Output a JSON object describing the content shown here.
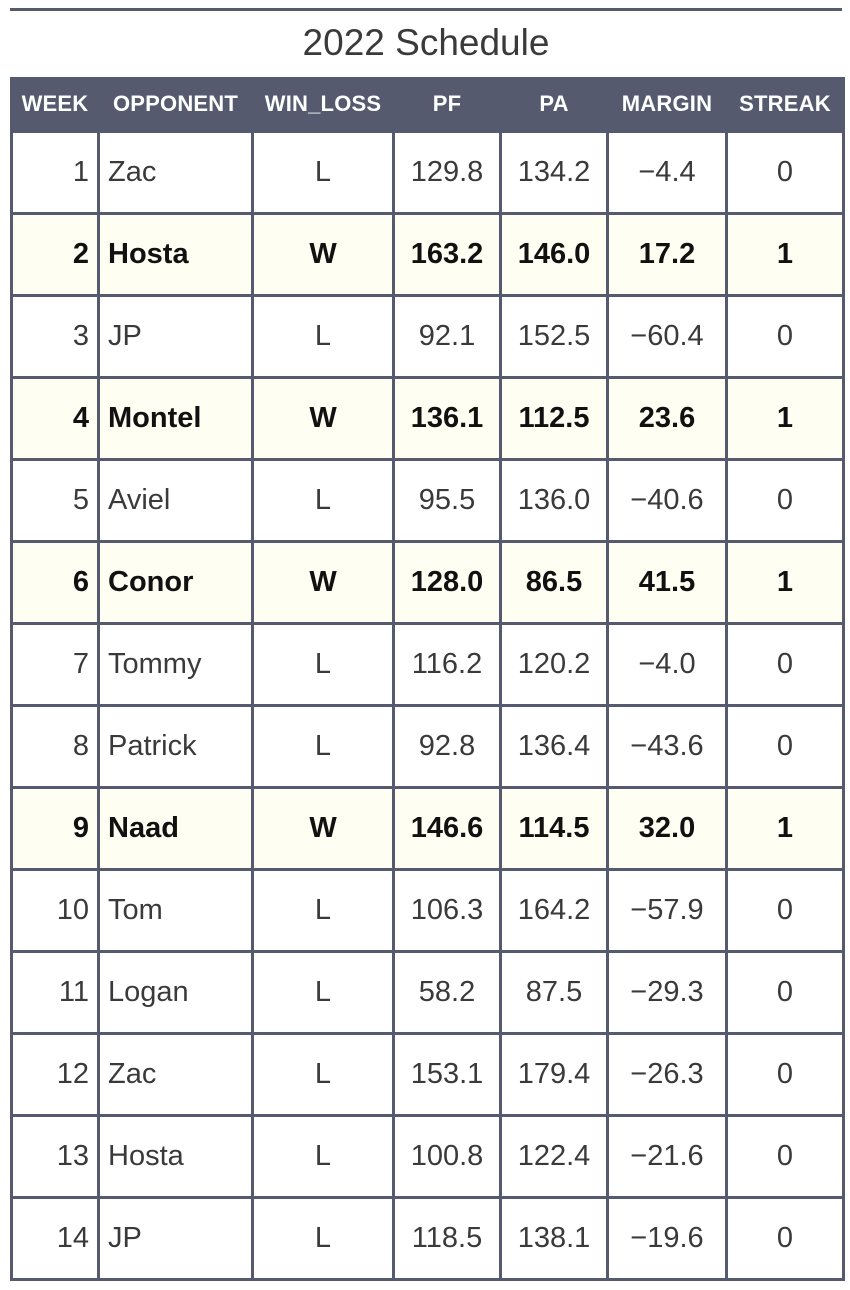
{
  "title": "2022 Schedule",
  "columns": [
    "WEEK",
    "OPPONENT",
    "WIN_LOSS",
    "PF",
    "PA",
    "MARGIN",
    "STREAK"
  ],
  "colors": {
    "header_bg": "#555a6e",
    "win_row_bg": "#fefef2",
    "border": "#555a6e"
  },
  "chart_data": {
    "type": "table",
    "title": "2022 Schedule",
    "columns": [
      "WEEK",
      "OPPONENT",
      "WIN_LOSS",
      "PF",
      "PA",
      "MARGIN",
      "STREAK"
    ],
    "rows": [
      {
        "week": "1",
        "opponent": "Zac",
        "win_loss": "L",
        "pf": "129.8",
        "pa": "134.2",
        "margin": "−4.4",
        "streak": "0"
      },
      {
        "week": "2",
        "opponent": "Hosta",
        "win_loss": "W",
        "pf": "163.2",
        "pa": "146.0",
        "margin": "17.2",
        "streak": "1"
      },
      {
        "week": "3",
        "opponent": "JP",
        "win_loss": "L",
        "pf": "92.1",
        "pa": "152.5",
        "margin": "−60.4",
        "streak": "0"
      },
      {
        "week": "4",
        "opponent": "Montel",
        "win_loss": "W",
        "pf": "136.1",
        "pa": "112.5",
        "margin": "23.6",
        "streak": "1"
      },
      {
        "week": "5",
        "opponent": "Aviel",
        "win_loss": "L",
        "pf": "95.5",
        "pa": "136.0",
        "margin": "−40.6",
        "streak": "0"
      },
      {
        "week": "6",
        "opponent": "Conor",
        "win_loss": "W",
        "pf": "128.0",
        "pa": "86.5",
        "margin": "41.5",
        "streak": "1"
      },
      {
        "week": "7",
        "opponent": "Tommy",
        "win_loss": "L",
        "pf": "116.2",
        "pa": "120.2",
        "margin": "−4.0",
        "streak": "0"
      },
      {
        "week": "8",
        "opponent": "Patrick",
        "win_loss": "L",
        "pf": "92.8",
        "pa": "136.4",
        "margin": "−43.6",
        "streak": "0"
      },
      {
        "week": "9",
        "opponent": "Naad",
        "win_loss": "W",
        "pf": "146.6",
        "pa": "114.5",
        "margin": "32.0",
        "streak": "1"
      },
      {
        "week": "10",
        "opponent": "Tom",
        "win_loss": "L",
        "pf": "106.3",
        "pa": "164.2",
        "margin": "−57.9",
        "streak": "0"
      },
      {
        "week": "11",
        "opponent": "Logan",
        "win_loss": "L",
        "pf": "58.2",
        "pa": "87.5",
        "margin": "−29.3",
        "streak": "0"
      },
      {
        "week": "12",
        "opponent": "Zac",
        "win_loss": "L",
        "pf": "153.1",
        "pa": "179.4",
        "margin": "−26.3",
        "streak": "0"
      },
      {
        "week": "13",
        "opponent": "Hosta",
        "win_loss": "L",
        "pf": "100.8",
        "pa": "122.4",
        "margin": "−21.6",
        "streak": "0"
      },
      {
        "week": "14",
        "opponent": "JP",
        "win_loss": "L",
        "pf": "118.5",
        "pa": "138.1",
        "margin": "−19.6",
        "streak": "0"
      }
    ]
  }
}
